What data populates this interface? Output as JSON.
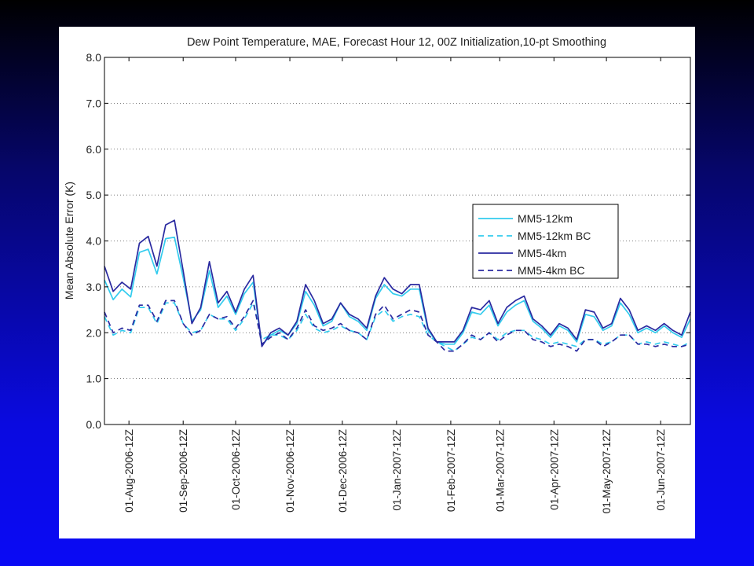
{
  "chart_data": {
    "type": "line",
    "title": "Dew Point Temperature, MAE, Forecast Hour 12, 00Z Initialization,10-pt Smoothing",
    "xlabel": "",
    "ylabel": "Mean Absolute Error (K)",
    "ylim": [
      0,
      8
    ],
    "yticks": [
      "0.0",
      "1.0",
      "2.0",
      "3.0",
      "4.0",
      "5.0",
      "6.0",
      "7.0",
      "8.0"
    ],
    "xlim": [
      "2006-07-18",
      "2007-06-18"
    ],
    "xticks": [
      {
        "date": "2006-08-01",
        "label": "01-Aug-2006-12Z"
      },
      {
        "date": "2006-09-01",
        "label": "01-Sep-2006-12Z"
      },
      {
        "date": "2006-10-01",
        "label": "01-Oct-2006-12Z"
      },
      {
        "date": "2006-11-01",
        "label": "01-Nov-2006-12Z"
      },
      {
        "date": "2006-12-01",
        "label": "01-Dec-2006-12Z"
      },
      {
        "date": "2007-01-01",
        "label": "01-Jan-2007-12Z"
      },
      {
        "date": "2007-02-01",
        "label": "01-Feb-2007-12Z"
      },
      {
        "date": "2007-03-01",
        "label": "01-Mar-2007-12Z"
      },
      {
        "date": "2007-04-01",
        "label": "01-Apr-2007-12Z"
      },
      {
        "date": "2007-05-01",
        "label": "01-May-2007-12Z"
      },
      {
        "date": "2007-06-01",
        "label": "01-Jun-2007-12Z"
      }
    ],
    "grid": "horizontal dotted",
    "legend_position": "right-middle",
    "x": [
      "2006-07-18",
      "2006-07-23",
      "2006-07-28",
      "2006-08-02",
      "2006-08-07",
      "2006-08-12",
      "2006-08-17",
      "2006-08-22",
      "2006-08-27",
      "2006-09-01",
      "2006-09-06",
      "2006-09-11",
      "2006-09-16",
      "2006-09-21",
      "2006-09-26",
      "2006-10-01",
      "2006-10-06",
      "2006-10-11",
      "2006-10-16",
      "2006-10-21",
      "2006-10-26",
      "2006-10-31",
      "2006-11-05",
      "2006-11-10",
      "2006-11-15",
      "2006-11-20",
      "2006-11-25",
      "2006-11-30",
      "2006-12-05",
      "2006-12-10",
      "2006-12-15",
      "2006-12-20",
      "2006-12-25",
      "2006-12-30",
      "2007-01-04",
      "2007-01-09",
      "2007-01-14",
      "2007-01-19",
      "2007-01-24",
      "2007-01-29",
      "2007-02-03",
      "2007-02-08",
      "2007-02-13",
      "2007-02-18",
      "2007-02-23",
      "2007-02-28",
      "2007-03-05",
      "2007-03-10",
      "2007-03-15",
      "2007-03-20",
      "2007-03-25",
      "2007-03-30",
      "2007-04-04",
      "2007-04-09",
      "2007-04-14",
      "2007-04-19",
      "2007-04-24",
      "2007-04-29",
      "2007-05-04",
      "2007-05-09",
      "2007-05-14",
      "2007-05-19",
      "2007-05-24",
      "2007-05-29",
      "2007-06-03",
      "2007-06-08",
      "2007-06-13",
      "2007-06-18"
    ],
    "series": [
      {
        "name": "MM5-12km",
        "color": "#33ccee",
        "style": "solid",
        "values": [
          3.15,
          2.72,
          2.95,
          2.78,
          3.75,
          3.82,
          3.28,
          4.05,
          4.08,
          3.2,
          2.25,
          2.5,
          3.35,
          2.55,
          2.8,
          2.4,
          2.85,
          3.1,
          1.72,
          1.95,
          2.05,
          1.95,
          2.2,
          2.9,
          2.6,
          2.15,
          2.25,
          2.65,
          2.35,
          2.25,
          2.05,
          2.75,
          3.05,
          2.85,
          2.8,
          2.95,
          2.95,
          2.05,
          1.8,
          1.75,
          1.75,
          2.0,
          2.45,
          2.4,
          2.6,
          2.15,
          2.45,
          2.6,
          2.7,
          2.25,
          2.1,
          1.9,
          2.15,
          2.05,
          1.8,
          2.4,
          2.35,
          2.05,
          2.15,
          2.65,
          2.4,
          2.0,
          2.1,
          2.0,
          2.15,
          2.0,
          1.9,
          2.3
        ]
      },
      {
        "name": "MM5-12km BC",
        "color": "#33ccee",
        "style": "dashed",
        "values": [
          2.35,
          1.95,
          2.05,
          2.0,
          2.55,
          2.55,
          2.2,
          2.65,
          2.65,
          2.2,
          2.0,
          2.05,
          2.4,
          2.3,
          2.3,
          2.05,
          2.3,
          2.65,
          1.85,
          1.95,
          1.95,
          1.85,
          2.05,
          2.4,
          2.1,
          2.0,
          2.05,
          2.15,
          2.05,
          2.0,
          1.85,
          2.35,
          2.5,
          2.25,
          2.35,
          2.4,
          2.35,
          1.95,
          1.8,
          1.7,
          1.6,
          1.75,
          1.9,
          1.85,
          2.0,
          1.85,
          2.0,
          2.05,
          2.05,
          1.9,
          1.85,
          1.75,
          1.8,
          1.75,
          1.7,
          1.85,
          1.85,
          1.75,
          1.8,
          1.95,
          1.95,
          1.75,
          1.8,
          1.75,
          1.8,
          1.75,
          1.7,
          1.8
        ]
      },
      {
        "name": "MM5-4km",
        "color": "#2a2aa0",
        "style": "solid",
        "values": [
          3.45,
          2.9,
          3.1,
          2.95,
          3.95,
          4.1,
          3.45,
          4.35,
          4.45,
          3.35,
          2.2,
          2.55,
          3.55,
          2.65,
          2.9,
          2.45,
          2.95,
          3.25,
          1.7,
          2.0,
          2.1,
          1.95,
          2.25,
          3.05,
          2.7,
          2.2,
          2.3,
          2.65,
          2.4,
          2.3,
          2.1,
          2.8,
          3.2,
          2.95,
          2.85,
          3.05,
          3.05,
          2.1,
          1.8,
          1.8,
          1.8,
          2.05,
          2.55,
          2.5,
          2.7,
          2.2,
          2.55,
          2.7,
          2.8,
          2.3,
          2.15,
          1.95,
          2.2,
          2.1,
          1.85,
          2.5,
          2.45,
          2.1,
          2.2,
          2.75,
          2.5,
          2.05,
          2.15,
          2.05,
          2.2,
          2.05,
          1.95,
          2.45
        ]
      },
      {
        "name": "MM5-4km BC",
        "color": "#2a2aa0",
        "style": "dashed",
        "values": [
          2.45,
          2.0,
          2.1,
          2.05,
          2.6,
          2.6,
          2.25,
          2.7,
          2.7,
          2.2,
          1.95,
          2.05,
          2.4,
          2.3,
          2.35,
          2.1,
          2.35,
          2.7,
          1.75,
          1.9,
          2.0,
          1.85,
          2.1,
          2.5,
          2.15,
          2.05,
          2.1,
          2.2,
          2.05,
          2.0,
          1.85,
          2.4,
          2.6,
          2.3,
          2.4,
          2.5,
          2.45,
          1.95,
          1.8,
          1.6,
          1.6,
          1.75,
          1.95,
          1.85,
          2.0,
          1.8,
          1.95,
          2.05,
          2.05,
          1.85,
          1.8,
          1.7,
          1.75,
          1.7,
          1.6,
          1.85,
          1.85,
          1.7,
          1.8,
          1.95,
          1.95,
          1.75,
          1.75,
          1.7,
          1.75,
          1.7,
          1.7,
          1.75
        ]
      }
    ]
  }
}
